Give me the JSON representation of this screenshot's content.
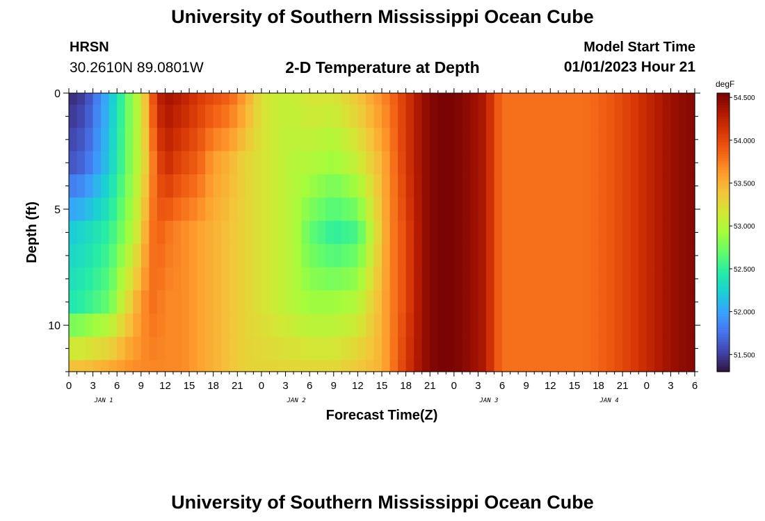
{
  "header": {
    "title": "University of Southern Mississippi Ocean Cube",
    "station": "HRSN",
    "coords": "30.2610N  89.0801W",
    "subtitle": "2-D Temperature at Depth",
    "start_label": "Model Start Time",
    "start_value": "01/01/2023 Hour 21"
  },
  "footer": {
    "title": "University of Southern Mississippi Ocean Cube"
  },
  "chart_data": {
    "type": "heatmap",
    "title": "2-D Temperature at Depth",
    "xlabel": "Forecast Time(Z)",
    "ylabel": "Depth (ft)",
    "units": "degF",
    "x_hours": [
      0,
      3,
      6,
      9,
      12,
      15,
      18,
      21,
      24,
      27,
      30,
      33,
      36,
      39,
      42,
      45,
      48,
      51,
      54,
      57,
      60,
      63,
      66,
      69,
      72,
      75,
      78
    ],
    "x_tick_labels": [
      "0",
      "3",
      "6",
      "9",
      "12",
      "15",
      "18",
      "21",
      "0",
      "3",
      "6",
      "9",
      "12",
      "15",
      "18",
      "21",
      "0",
      "3",
      "6",
      "9",
      "12",
      "15",
      "18",
      "21",
      "0",
      "3",
      "6"
    ],
    "day_labels": [
      {
        "label": "JAN 1",
        "hour": 4
      },
      {
        "label": "JAN 2",
        "hour": 28
      },
      {
        "label": "JAN 3",
        "hour": 52
      },
      {
        "label": "JAN 4",
        "hour": 67
      }
    ],
    "xlim": [
      0,
      78
    ],
    "ylim": [
      12,
      0
    ],
    "y_ticks": [
      0,
      5,
      10
    ],
    "y_tick_labels": [
      "0",
      "5",
      "10"
    ],
    "depths": [
      0,
      1,
      2,
      3,
      4,
      5,
      6,
      7,
      8,
      9,
      10,
      11,
      12
    ],
    "colorbar": {
      "range": [
        51.3,
        54.55
      ],
      "ticks": [
        51.5,
        52.0,
        52.5,
        53.0,
        53.5,
        54.0,
        54.5
      ],
      "tick_labels": [
        "51.500",
        "52.000",
        "52.500",
        "53.000",
        "53.500",
        "54.000",
        "54.500"
      ],
      "colors": [
        "#30123b",
        "#4145ab",
        "#4675ed",
        "#39a2fc",
        "#1bcfd4",
        "#24eca6",
        "#61fc6c",
        "#a4fc3b",
        "#d1e834",
        "#f3c63a",
        "#fe9b2d",
        "#f36315",
        "#d93806",
        "#b11901",
        "#7a0403"
      ]
    },
    "transect_keypoints": {
      "hours": [
        0,
        2,
        5,
        8,
        9,
        9.5,
        10,
        11,
        12,
        14,
        16,
        18,
        20,
        22,
        24,
        26,
        28,
        30,
        33,
        36,
        39,
        40,
        42,
        44,
        45,
        46,
        47,
        48,
        50,
        52,
        53,
        54,
        56,
        58,
        60,
        62,
        64,
        66,
        68,
        70,
        72,
        74,
        76,
        78
      ],
      "depth_0": [
        51.4,
        51.5,
        52.1,
        52.9,
        53.1,
        53.4,
        53.7,
        54.2,
        54.4,
        54.3,
        54.1,
        54.0,
        53.9,
        53.6,
        53.2,
        53.1,
        53.1,
        53.2,
        53.2,
        53.4,
        53.7,
        53.8,
        54.1,
        54.4,
        54.5,
        54.55,
        54.55,
        54.55,
        54.45,
        54.3,
        54.0,
        53.8,
        53.8,
        53.8,
        53.8,
        53.8,
        53.8,
        53.85,
        53.95,
        54.05,
        54.2,
        54.35,
        54.45,
        54.5
      ],
      "depth_3": [
        51.6,
        51.7,
        52.2,
        52.9,
        53.1,
        53.3,
        53.6,
        53.9,
        54.2,
        54.0,
        53.9,
        53.6,
        53.5,
        53.3,
        53.2,
        53.1,
        53.0,
        53.0,
        52.9,
        53.1,
        53.5,
        53.7,
        54.1,
        54.4,
        54.5,
        54.55,
        54.55,
        54.55,
        54.45,
        54.3,
        54.0,
        53.8,
        53.8,
        53.8,
        53.8,
        53.8,
        53.8,
        53.85,
        53.95,
        54.05,
        54.2,
        54.35,
        54.45,
        54.5
      ],
      "depth_6": [
        52.2,
        52.3,
        52.5,
        53.0,
        53.3,
        53.5,
        53.7,
        53.9,
        53.8,
        53.7,
        53.6,
        53.5,
        53.4,
        53.3,
        53.2,
        53.1,
        53.0,
        52.7,
        52.5,
        52.6,
        53.4,
        53.7,
        54.0,
        54.4,
        54.5,
        54.55,
        54.55,
        54.55,
        54.45,
        54.3,
        54.0,
        53.8,
        53.8,
        53.8,
        53.8,
        53.8,
        53.8,
        53.85,
        53.95,
        54.05,
        54.2,
        54.35,
        54.45,
        54.5
      ],
      "depth_9": [
        52.4,
        52.5,
        52.7,
        53.4,
        53.6,
        53.7,
        53.8,
        53.8,
        53.7,
        53.7,
        53.6,
        53.5,
        53.4,
        53.3,
        53.2,
        53.1,
        53.0,
        52.9,
        52.9,
        53.0,
        53.5,
        53.7,
        54.0,
        54.4,
        54.5,
        54.55,
        54.55,
        54.55,
        54.45,
        54.3,
        54.0,
        53.8,
        53.8,
        53.8,
        53.8,
        53.8,
        53.8,
        53.85,
        53.95,
        54.05,
        54.2,
        54.35,
        54.45,
        54.5
      ],
      "depth_12": [
        53.5,
        53.5,
        53.6,
        53.7,
        53.7,
        53.7,
        53.7,
        53.7,
        53.7,
        53.7,
        53.6,
        53.5,
        53.4,
        53.3,
        53.3,
        53.3,
        53.3,
        53.3,
        53.3,
        53.4,
        53.5,
        53.7,
        54.1,
        54.4,
        54.5,
        54.55,
        54.55,
        54.55,
        54.45,
        54.3,
        54.0,
        53.8,
        53.8,
        53.8,
        53.8,
        53.8,
        53.8,
        53.85,
        53.95,
        54.05,
        54.2,
        54.35,
        54.45,
        54.5
      ]
    }
  }
}
